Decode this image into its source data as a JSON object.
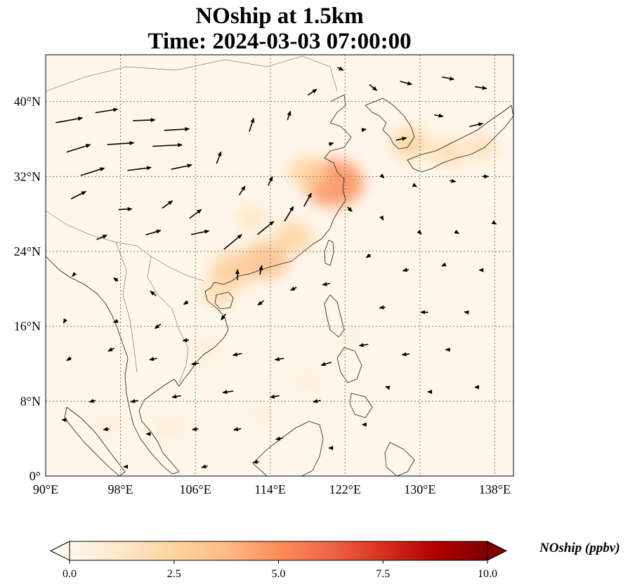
{
  "title": {
    "line1": "NOship at 1.5km",
    "line2": "Time: 2024-03-03 07:00:00"
  },
  "map": {
    "lon_range": [
      90,
      140
    ],
    "lat_range": [
      0,
      45
    ],
    "lon_ticks": [
      90,
      98,
      106,
      114,
      122,
      130,
      138
    ],
    "lat_ticks": [
      0,
      8,
      16,
      24,
      32,
      40
    ],
    "lon_tick_labels": [
      "90°E",
      "98°E",
      "106°E",
      "114°E",
      "122°E",
      "130°E",
      "138°E"
    ],
    "lat_tick_labels": [
      "0°",
      "8°N",
      "16°N",
      "24°N",
      "32°N",
      "40°N"
    ],
    "gridlines": true,
    "field": "NOship",
    "level": "1.5km"
  },
  "colorbar": {
    "label": "NOship (ppbv)",
    "range": [
      0.0,
      10.0
    ],
    "ticks": [
      0.0,
      2.5,
      5.0,
      7.5,
      10.0
    ],
    "tick_labels": [
      "0.0",
      "2.5",
      "5.0",
      "7.5",
      "10.0"
    ],
    "extend": "both",
    "colormap": "OrRd",
    "colors": [
      "#fff7ec",
      "#fee8c8",
      "#fdd49e",
      "#fdbb84",
      "#fc8d59",
      "#ef6548",
      "#d7301f",
      "#b30000",
      "#7f0000"
    ]
  },
  "hotspots": [
    {
      "lon": 120.8,
      "lat": 31.3,
      "value": 5.0
    },
    {
      "lon": 118.0,
      "lat": 32.5,
      "value": 2.5
    },
    {
      "lon": 113.5,
      "lat": 23.0,
      "value": 3.5
    },
    {
      "lon": 110.0,
      "lat": 22.0,
      "value": 3.0
    },
    {
      "lon": 116.5,
      "lat": 25.5,
      "value": 2.5
    },
    {
      "lon": 108.5,
      "lat": 19.5,
      "value": 2.0
    },
    {
      "lon": 112.0,
      "lat": 27.5,
      "value": 1.5
    },
    {
      "lon": 129.0,
      "lat": 35.5,
      "value": 2.5
    },
    {
      "lon": 133.0,
      "lat": 34.5,
      "value": 2.0
    },
    {
      "lon": 136.5,
      "lat": 35.2,
      "value": 1.8
    },
    {
      "lon": 107.0,
      "lat": 13.5,
      "value": 1.0
    },
    {
      "lon": 103.0,
      "lat": 5.0,
      "value": 1.0
    },
    {
      "lon": 96.5,
      "lat": 5.5,
      "value": 0.8
    },
    {
      "lon": 118.0,
      "lat": 10.0,
      "value": 0.8
    },
    {
      "lon": 122.0,
      "lat": 15.0,
      "value": 0.7
    },
    {
      "lon": 113.0,
      "lat": 6.5,
      "value": 0.6
    }
  ],
  "wind_arrows": [
    {
      "lon": 92.5,
      "lat": 38.0,
      "u": 9.0,
      "v": 1.6
    },
    {
      "lon": 96.5,
      "lat": 39.0,
      "u": 7.5,
      "v": 1.2
    },
    {
      "lon": 100.5,
      "lat": 38.0,
      "u": 7.5,
      "v": 0.3
    },
    {
      "lon": 104.0,
      "lat": 37.0,
      "u": 8.5,
      "v": 0.5
    },
    {
      "lon": 93.5,
      "lat": 35.0,
      "u": 8.0,
      "v": 2.5
    },
    {
      "lon": 98.0,
      "lat": 35.5,
      "u": 9.0,
      "v": 0.6
    },
    {
      "lon": 103.0,
      "lat": 35.3,
      "u": 10.0,
      "v": 0.5
    },
    {
      "lon": 95.0,
      "lat": 32.5,
      "u": 8.0,
      "v": 2.5
    },
    {
      "lon": 100.0,
      "lat": 32.8,
      "u": 8.0,
      "v": 1.0
    },
    {
      "lon": 104.5,
      "lat": 33.0,
      "u": 7.0,
      "v": 1.5
    },
    {
      "lon": 93.5,
      "lat": 30.0,
      "u": 5.0,
      "v": 2.5
    },
    {
      "lon": 98.5,
      "lat": 28.5,
      "u": 4.5,
      "v": 0.2
    },
    {
      "lon": 103.0,
      "lat": 29.0,
      "u": 3.5,
      "v": 2.5
    },
    {
      "lon": 106.0,
      "lat": 28.0,
      "u": 4.0,
      "v": 3.0
    },
    {
      "lon": 96.0,
      "lat": 25.5,
      "u": 3.5,
      "v": 1.5
    },
    {
      "lon": 101.5,
      "lat": 26.0,
      "u": 5.0,
      "v": 1.5
    },
    {
      "lon": 106.5,
      "lat": 26.0,
      "u": 6.0,
      "v": 1.2
    },
    {
      "lon": 110.0,
      "lat": 25.0,
      "u": 6.0,
      "v": 5.0
    },
    {
      "lon": 113.5,
      "lat": 26.5,
      "u": 5.5,
      "v": 4.5
    },
    {
      "lon": 116.0,
      "lat": 28.0,
      "u": 3.0,
      "v": 5.0
    },
    {
      "lon": 118.0,
      "lat": 29.5,
      "u": 2.5,
      "v": 4.5
    },
    {
      "lon": 110.5,
      "lat": 21.5,
      "u": 0.0,
      "v": 3.5
    },
    {
      "lon": 113.0,
      "lat": 22.0,
      "u": 0.6,
      "v": 3.0
    },
    {
      "lon": 111.0,
      "lat": 30.5,
      "u": 2.0,
      "v": 3.0
    },
    {
      "lon": 114.0,
      "lat": 31.5,
      "u": 1.5,
      "v": 3.0
    },
    {
      "lon": 108.5,
      "lat": 34.0,
      "u": 1.5,
      "v": 4.0
    },
    {
      "lon": 112.0,
      "lat": 37.5,
      "u": 1.5,
      "v": 4.5
    },
    {
      "lon": 116.0,
      "lat": 38.5,
      "u": 1.0,
      "v": 3.0
    },
    {
      "lon": 118.5,
      "lat": 41.0,
      "u": 3.0,
      "v": 2.0
    },
    {
      "lon": 121.5,
      "lat": 43.5,
      "u": 2.0,
      "v": -1.0
    },
    {
      "lon": 125.0,
      "lat": 41.5,
      "u": 2.5,
      "v": -2.0
    },
    {
      "lon": 128.5,
      "lat": 42.0,
      "u": 4.0,
      "v": -1.0
    },
    {
      "lon": 133.0,
      "lat": 42.5,
      "u": 4.0,
      "v": -0.8
    },
    {
      "lon": 136.5,
      "lat": 41.5,
      "u": 4.0,
      "v": -0.6
    },
    {
      "lon": 132.0,
      "lat": 38.5,
      "u": 3.0,
      "v": -0.5
    },
    {
      "lon": 136.0,
      "lat": 37.5,
      "u": 4.5,
      "v": 1.0
    },
    {
      "lon": 128.0,
      "lat": 36.0,
      "u": 3.5,
      "v": 0.8
    },
    {
      "lon": 124.0,
      "lat": 37.0,
      "u": 1.5,
      "v": 0.3
    },
    {
      "lon": 120.5,
      "lat": 35.5,
      "u": 1.5,
      "v": 0.5
    },
    {
      "lon": 126.0,
      "lat": 32.0,
      "u": 1.0,
      "v": -1.0
    },
    {
      "lon": 129.5,
      "lat": 31.0,
      "u": 1.0,
      "v": -0.5
    },
    {
      "lon": 133.5,
      "lat": 31.5,
      "u": 2.0,
      "v": -0.3
    },
    {
      "lon": 137.0,
      "lat": 32.0,
      "u": 2.0,
      "v": 0.0
    },
    {
      "lon": 122.5,
      "lat": 28.5,
      "u": 1.5,
      "v": -1.5
    },
    {
      "lon": 126.0,
      "lat": 27.5,
      "u": 0.5,
      "v": -1.0
    },
    {
      "lon": 130.0,
      "lat": 26.0,
      "u": 1.0,
      "v": -1.0
    },
    {
      "lon": 134.0,
      "lat": 26.0,
      "u": 1.0,
      "v": -0.5
    },
    {
      "lon": 138.0,
      "lat": 27.0,
      "u": 1.0,
      "v": -0.5
    },
    {
      "lon": 124.5,
      "lat": 23.5,
      "u": -1.5,
      "v": -1.0
    },
    {
      "lon": 128.5,
      "lat": 22.0,
      "u": -2.0,
      "v": -0.5
    },
    {
      "lon": 132.5,
      "lat": 22.5,
      "u": -1.0,
      "v": -0.5
    },
    {
      "lon": 136.5,
      "lat": 22.0,
      "u": -1.0,
      "v": 0.0
    },
    {
      "lon": 120.0,
      "lat": 20.5,
      "u": -2.5,
      "v": -0.5
    },
    {
      "lon": 116.5,
      "lat": 20.0,
      "u": -2.0,
      "v": -1.0
    },
    {
      "lon": 113.0,
      "lat": 18.5,
      "u": -2.0,
      "v": -1.5
    },
    {
      "lon": 109.0,
      "lat": 17.0,
      "u": -1.5,
      "v": -2.0
    },
    {
      "lon": 105.0,
      "lat": 18.5,
      "u": -1.5,
      "v": -1.0
    },
    {
      "lon": 101.5,
      "lat": 19.5,
      "u": -2.0,
      "v": 1.5
    },
    {
      "lon": 97.5,
      "lat": 21.0,
      "u": -1.5,
      "v": 1.0
    },
    {
      "lon": 93.0,
      "lat": 21.5,
      "u": -1.0,
      "v": -1.0
    },
    {
      "lon": 126.0,
      "lat": 18.0,
      "u": -2.0,
      "v": -0.3
    },
    {
      "lon": 130.5,
      "lat": 17.5,
      "u": -2.5,
      "v": 0.0
    },
    {
      "lon": 135.0,
      "lat": 17.5,
      "u": -1.5,
      "v": 0.3
    },
    {
      "lon": 124.0,
      "lat": 14.0,
      "u": -3.0,
      "v": -0.5
    },
    {
      "lon": 128.5,
      "lat": 13.0,
      "u": -2.5,
      "v": -0.3
    },
    {
      "lon": 133.0,
      "lat": 13.5,
      "u": -1.5,
      "v": 0.0
    },
    {
      "lon": 120.0,
      "lat": 12.0,
      "u": -3.5,
      "v": -1.0
    },
    {
      "lon": 115.0,
      "lat": 12.5,
      "u": -3.0,
      "v": -0.5
    },
    {
      "lon": 110.5,
      "lat": 13.0,
      "u": -3.0,
      "v": -0.6
    },
    {
      "lon": 106.0,
      "lat": 12.0,
      "u": -2.5,
      "v": -0.4
    },
    {
      "lon": 101.5,
      "lat": 12.5,
      "u": -2.5,
      "v": -0.5
    },
    {
      "lon": 97.0,
      "lat": 13.5,
      "u": -2.0,
      "v": -1.0
    },
    {
      "lon": 92.5,
      "lat": 12.5,
      "u": -1.5,
      "v": -1.0
    },
    {
      "lon": 92.0,
      "lat": 16.5,
      "u": -0.5,
      "v": -1.0
    },
    {
      "lon": 97.5,
      "lat": 16.5,
      "u": -1.5,
      "v": -0.5
    },
    {
      "lon": 102.0,
      "lat": 16.0,
      "u": -2.0,
      "v": -1.5
    },
    {
      "lon": 105.0,
      "lat": 14.5,
      "u": -2.0,
      "v": -0.2
    },
    {
      "lon": 109.5,
      "lat": 9.0,
      "u": -3.5,
      "v": -0.5
    },
    {
      "lon": 114.5,
      "lat": 8.5,
      "u": -3.0,
      "v": -0.6
    },
    {
      "lon": 119.0,
      "lat": 8.0,
      "u": -2.5,
      "v": -0.5
    },
    {
      "lon": 104.0,
      "lat": 8.5,
      "u": -3.0,
      "v": -0.5
    },
    {
      "lon": 99.5,
      "lat": 8.0,
      "u": -2.5,
      "v": -0.5
    },
    {
      "lon": 95.0,
      "lat": 8.0,
      "u": -2.0,
      "v": -0.5
    },
    {
      "lon": 92.0,
      "lat": 6.0,
      "u": -1.5,
      "v": 0.0
    },
    {
      "lon": 96.5,
      "lat": 5.0,
      "u": -2.0,
      "v": -0.3
    },
    {
      "lon": 101.0,
      "lat": 4.5,
      "u": -1.5,
      "v": 0.0
    },
    {
      "lon": 106.0,
      "lat": 5.0,
      "u": -2.0,
      "v": -0.3
    },
    {
      "lon": 110.5,
      "lat": 5.0,
      "u": -2.5,
      "v": -0.4
    },
    {
      "lon": 115.0,
      "lat": 4.0,
      "u": -2.5,
      "v": -0.5
    },
    {
      "lon": 120.5,
      "lat": 3.0,
      "u": -1.5,
      "v": 0.0
    },
    {
      "lon": 124.0,
      "lat": 5.5,
      "u": -1.0,
      "v": 0.0
    },
    {
      "lon": 107.0,
      "lat": 1.0,
      "u": -2.0,
      "v": -0.5
    },
    {
      "lon": 112.5,
      "lat": 1.5,
      "u": -2.0,
      "v": -0.3
    },
    {
      "lon": 98.5,
      "lat": 1.0,
      "u": -1.0,
      "v": 0.0
    },
    {
      "lon": 126.5,
      "lat": 9.5,
      "u": -1.0,
      "v": 0.3
    },
    {
      "lon": 131.0,
      "lat": 9.0,
      "u": -1.0,
      "v": 0.0
    },
    {
      "lon": 136.0,
      "lat": 9.5,
      "u": -0.8,
      "v": 0.0
    }
  ]
}
